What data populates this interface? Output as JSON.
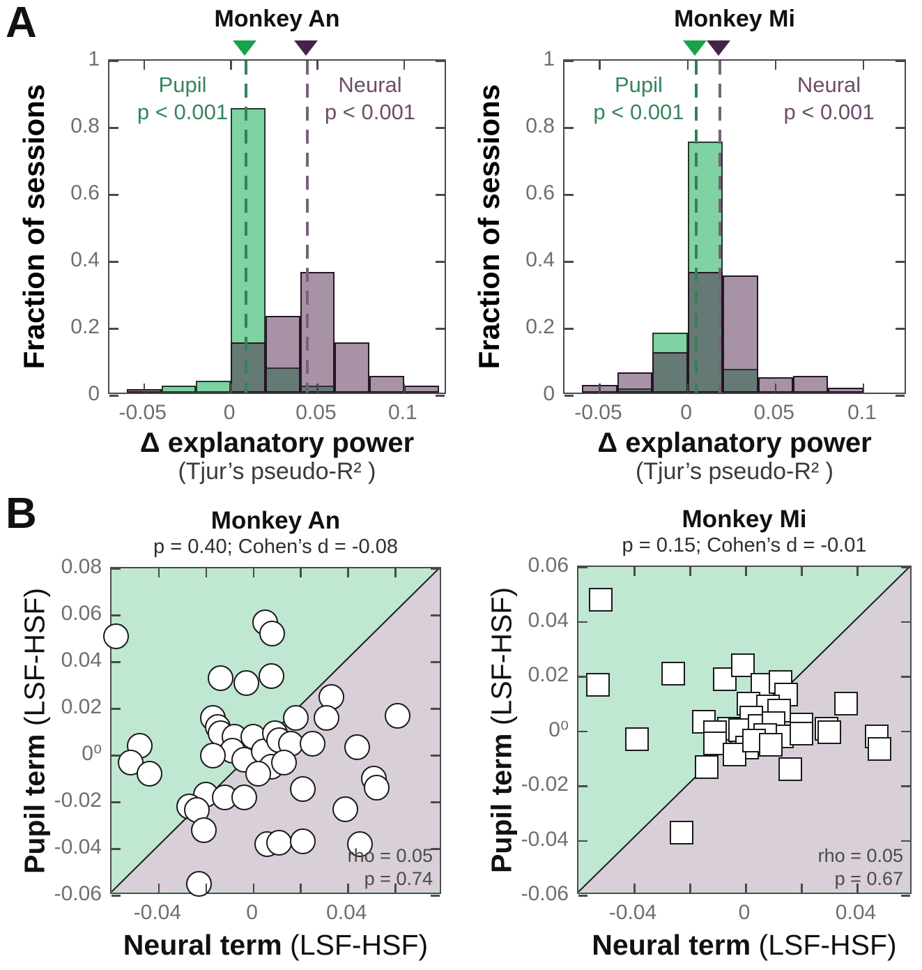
{
  "labels": {
    "panel_a": "A",
    "panel_b": "B"
  },
  "colors": {
    "hist_green_fill": "#7fd2a1",
    "hist_green_edge": "#21392b",
    "hist_purple_fill_rgba": "rgba(73,27,69,0.48)",
    "hist_purple_edge": "#241624",
    "dash_green": "#35805a",
    "dash_purple": "#77627a",
    "tri_green": "#17a34a",
    "tri_purple": "#46224a",
    "text_green": "#35855c",
    "text_purple": "#6d4b6b",
    "axis": "#4a4a4a",
    "tick_label": "#6e6e6e",
    "scatter_green_bg": "#bfe7d2",
    "scatter_purple_bg": "#d9cfd9",
    "diagonal": "#1a1a1a",
    "marker_fill": "#ffffff",
    "marker_edge": "#1a1a1a"
  },
  "chart_data": [
    {
      "type": "bar",
      "panel": "A",
      "title": "Monkey An",
      "ylabel": "Fraction of sessions",
      "xlabel": "Δ explanatory power",
      "xlabel2": "(Tjur’s pseudo-R² )",
      "xlim": [
        -0.07,
        0.125
      ],
      "ylim": [
        0,
        1
      ],
      "xticks": [
        -0.05,
        0,
        0.05,
        0.1
      ],
      "xtick_labels": [
        "-0.05",
        "0",
        "0.05",
        "0.1"
      ],
      "yticks": [
        0,
        0.2,
        0.4,
        0.6,
        0.8,
        1
      ],
      "ytick_labels": [
        "0",
        "0.2",
        "0.4",
        "0.6",
        "0.8",
        "1"
      ],
      "bin_width": 0.02,
      "series": [
        {
          "name": "Pupil",
          "p_text": "p < 0.001",
          "mean": 0.009,
          "bins": [
            {
              "x0": -0.04,
              "h": 0.02
            },
            {
              "x0": -0.02,
              "h": 0.035
            },
            {
              "x0": 0,
              "h": 0.85
            },
            {
              "x0": 0.02,
              "h": 0.075
            },
            {
              "x0": 0.04,
              "h": 0.02
            }
          ]
        },
        {
          "name": "Neural",
          "p_text": "p < 0.001",
          "mean": 0.044,
          "bins": [
            {
              "x0": -0.06,
              "h": 0.01
            },
            {
              "x0": 0,
              "h": 0.15
            },
            {
              "x0": 0.02,
              "h": 0.23
            },
            {
              "x0": 0.04,
              "h": 0.36
            },
            {
              "x0": 0.06,
              "h": 0.15
            },
            {
              "x0": 0.08,
              "h": 0.05
            },
            {
              "x0": 0.1,
              "h": 0.02
            }
          ]
        }
      ]
    },
    {
      "type": "bar",
      "panel": "A",
      "title": "Monkey Mi",
      "ylabel": "Fraction of sessions",
      "xlabel": "Δ explanatory power",
      "xlabel2": "(Tjur’s pseudo-R² )",
      "xlim": [
        -0.07,
        0.125
      ],
      "ylim": [
        0,
        1
      ],
      "xticks": [
        -0.05,
        0,
        0.05,
        0.1
      ],
      "xtick_labels": [
        "-0.05",
        "0",
        "0.05",
        "0.1"
      ],
      "yticks": [
        0,
        0.2,
        0.4,
        0.6,
        0.8,
        1
      ],
      "ytick_labels": [
        "0",
        "0.2",
        "0.4",
        "0.6",
        "0.8",
        "1"
      ],
      "bin_width": 0.02,
      "series": [
        {
          "name": "Pupil",
          "p_text": "p < 0.001",
          "mean": 0.005,
          "bins": [
            {
              "x0": -0.04,
              "h": 0.012
            },
            {
              "x0": -0.02,
              "h": 0.18
            },
            {
              "x0": 0,
              "h": 0.75
            },
            {
              "x0": 0.02,
              "h": 0.07
            }
          ]
        },
        {
          "name": "Neural",
          "p_text": "p < 0.001",
          "mean": 0.0185,
          "bins": [
            {
              "x0": -0.06,
              "h": 0.022
            },
            {
              "x0": -0.04,
              "h": 0.06
            },
            {
              "x0": -0.02,
              "h": 0.12
            },
            {
              "x0": 0,
              "h": 0.36
            },
            {
              "x0": 0.02,
              "h": 0.35
            },
            {
              "x0": 0.04,
              "h": 0.045
            },
            {
              "x0": 0.06,
              "h": 0.05
            },
            {
              "x0": 0.08,
              "h": 0.015
            }
          ]
        }
      ]
    },
    {
      "type": "scatter",
      "panel": "B",
      "title": "Monkey An",
      "subtitle": "p = 0.40; Cohen’s d = -0.08",
      "marker": "circle",
      "xlabel_bold": "Neural term",
      "xlabel_rest": " (LSF-HSF)",
      "ylabel_bold": "Pupil term",
      "ylabel_rest": " (LSF-HSF)",
      "xlim": [
        -0.06,
        0.08
      ],
      "ylim": [
        -0.06,
        0.08
      ],
      "xticks": [
        -0.04,
        -0.02,
        0,
        0.02,
        0.04,
        0.06
      ],
      "xtick_labels": [
        "-0.04",
        "",
        "0",
        "",
        "0.04",
        ""
      ],
      "yticks": [
        0.08,
        0.06,
        0.04,
        0.02,
        0,
        -0.02,
        -0.04,
        -0.06
      ],
      "ytick_labels": [
        "0.08",
        "0.06",
        "0.04",
        "0.02",
        "0⁰",
        "-0.02",
        "-0.04",
        "-0.06"
      ],
      "annotation": [
        "rho = 0.05",
        "p = 0.74"
      ],
      "points": [
        [
          -0.058,
          0.051
        ],
        [
          0.005,
          0.057
        ],
        [
          0.008,
          0.052
        ],
        [
          -0.014,
          0.033
        ],
        [
          -0.003,
          0.031
        ],
        [
          0.0075,
          0.034
        ],
        [
          0.033,
          0.025
        ],
        [
          0.031,
          0.016
        ],
        [
          0.018,
          0.016
        ],
        [
          0.061,
          0.017
        ],
        [
          -0.017,
          0.016
        ],
        [
          -0.015,
          0.012
        ],
        [
          -0.048,
          0.004
        ],
        [
          -0.052,
          -0.003
        ],
        [
          -0.044,
          -0.008
        ],
        [
          -0.014,
          0.0095
        ],
        [
          -0.008,
          0.008
        ],
        [
          0.0,
          0.008
        ],
        [
          -0.009,
          0.002
        ],
        [
          -0.017,
          0.0
        ],
        [
          -0.004,
          -0.002
        ],
        [
          0.0045,
          0.0015
        ],
        [
          0.009,
          0.0095
        ],
        [
          0.011,
          0.0065
        ],
        [
          0.016,
          0.005
        ],
        [
          0.0075,
          -0.005
        ],
        [
          0.013,
          -0.003
        ],
        [
          0.002,
          -0.008
        ],
        [
          0.025,
          0.005
        ],
        [
          0.044,
          0.0035
        ],
        [
          0.021,
          -0.0145
        ],
        [
          0.051,
          -0.01
        ],
        [
          0.052,
          -0.014
        ],
        [
          0.039,
          -0.023
        ],
        [
          -0.02,
          -0.017
        ],
        [
          -0.012,
          -0.018
        ],
        [
          -0.004,
          -0.018
        ],
        [
          -0.027,
          -0.022
        ],
        [
          -0.024,
          -0.0235
        ],
        [
          -0.021,
          -0.032
        ],
        [
          0.006,
          -0.038
        ],
        [
          0.011,
          -0.0375
        ],
        [
          0.021,
          -0.037
        ],
        [
          0.045,
          -0.038
        ],
        [
          -0.023,
          -0.055
        ]
      ]
    },
    {
      "type": "scatter",
      "panel": "B",
      "title": "Monkey Mi",
      "subtitle": "p = 0.15; Cohen’s d = -0.01",
      "marker": "square",
      "xlabel_bold": "Neural term",
      "xlabel_rest": " (LSF-HSF)",
      "ylabel_bold": "Pupil term",
      "ylabel_rest": " (LSF-HSF)",
      "xlim": [
        -0.06,
        0.06
      ],
      "ylim": [
        -0.06,
        0.06
      ],
      "xticks": [
        -0.04,
        -0.02,
        0,
        0.02,
        0.04
      ],
      "xtick_labels": [
        "-0.04",
        "",
        "0",
        "",
        "0.04"
      ],
      "yticks": [
        0.06,
        0.04,
        0.02,
        0,
        -0.02,
        -0.04,
        -0.06
      ],
      "ytick_labels": [
        "0.06",
        "0.04",
        "0.02",
        "0⁰",
        "-0.02",
        "-0.04",
        "-0.06"
      ],
      "annotation": [
        "rho = 0.05",
        "p = 0.67"
      ],
      "points": [
        [
          -0.052,
          0.048
        ],
        [
          -0.053,
          0.017
        ],
        [
          -0.026,
          0.021
        ],
        [
          -0.0075,
          0.019
        ],
        [
          -0.001,
          0.024
        ],
        [
          0.006,
          0.017
        ],
        [
          0.0125,
          0.018
        ],
        [
          0.0145,
          0.0135
        ],
        [
          0.036,
          0.01
        ],
        [
          0.001,
          0.01
        ],
        [
          0.008,
          0.009
        ],
        [
          0.012,
          0.0075
        ],
        [
          -0.015,
          0.0035
        ],
        [
          -0.006,
          0.001
        ],
        [
          0.002,
          0.005
        ],
        [
          0.02,
          0.0025
        ],
        [
          0.029,
          0.001
        ],
        [
          -0.039,
          -0.003
        ],
        [
          -0.011,
          -0.0005
        ],
        [
          -0.002,
          0.0005
        ],
        [
          0.005,
          0.002
        ],
        [
          0.01,
          0.003
        ],
        [
          0.013,
          -0.002
        ],
        [
          0.0005,
          -0.006
        ],
        [
          0.007,
          -0.0015
        ],
        [
          -0.023,
          -0.037
        ],
        [
          -0.014,
          -0.013
        ],
        [
          -0.011,
          -0.0045
        ],
        [
          -0.004,
          -0.0085
        ],
        [
          0.003,
          -0.0035
        ],
        [
          0.009,
          -0.005
        ],
        [
          0.016,
          -0.014
        ],
        [
          0.02,
          -0.001
        ],
        [
          0.03,
          -0.0005
        ],
        [
          0.047,
          -0.002
        ],
        [
          0.048,
          -0.0065
        ]
      ]
    }
  ]
}
